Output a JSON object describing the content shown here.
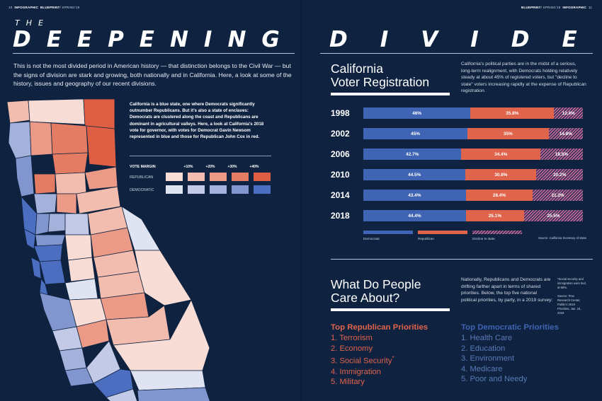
{
  "folio": {
    "left_page": "10",
    "left_section": "INFOGRAPHIC",
    "left_mag": "BLUEPRINT",
    "left_issue": "/ SPRING'19",
    "right_mag": "BLUEPRINT",
    "right_issue": "/ SPRING'19",
    "right_section": "INFOGRAPHIC",
    "right_page": "11"
  },
  "headline": {
    "the": "THE",
    "word_left": "DEEPENING",
    "word_right": "DIVIDE"
  },
  "intro": "This is not the most divided period in American history — that distinction belongs to the Civil War — but the signs of division are stark and growing, both nationally and in California. Here, a look at some of the history, issues and geography of our recent divisions.",
  "map_note": "California is a blue state, one where Democrats significantly outnumber Republicans. But it's also a state of enclaves: Democrats are clustered along the coast and Republicans are dominant in agricultural valleys. Here, a look at California's 2018 vote for governor, with votes for Democrat Gavin Newsom represented in blue and those for Republican John Cox in red.",
  "vote_margin": {
    "title": "VOTE MARGIN",
    "headers": [
      "+10%",
      "+20%",
      "+30%",
      "+40%"
    ],
    "republican_label": "REPUBLICAN",
    "democratic_label": "DEMOCRATIC",
    "republican_colors": [
      "#f8dcd6",
      "#f2bcae",
      "#eb9a87",
      "#e47b63",
      "#df5f44"
    ],
    "democratic_colors": [
      "#dfe3f2",
      "#c3cae8",
      "#a4b1db",
      "#8196cf",
      "#4c6ec0"
    ]
  },
  "registration": {
    "title_line1": "California",
    "title_line2": "Voter Registration",
    "description": "California's political parties are in the midst of a serious, long-term realignment, with Democrats holding relatively steady at about 45% of registered voters, but \"decline to state\" voters increasing rapidly at the expense of Republican registration.",
    "legend": {
      "democratic": "Democratic",
      "republican": "Republican",
      "decline": "Decline to state"
    },
    "source": "Source: California Secretary of State",
    "colors": {
      "democratic": "#3f64b4",
      "republican": "#e0634b",
      "decline": "#c86d93"
    }
  },
  "chart_data": {
    "type": "bar",
    "stacked": true,
    "categories": [
      "1998",
      "2002",
      "2006",
      "2010",
      "2014",
      "2018"
    ],
    "series": [
      {
        "name": "Democratic",
        "values": [
          46,
          45,
          42.7,
          44.5,
          43.4,
          44.4
        ],
        "labels": [
          "46%",
          "45%",
          "42.7%",
          "44.5%",
          "43.4%",
          "44.4%"
        ]
      },
      {
        "name": "Republican",
        "values": [
          35.8,
          35,
          34.4,
          30.8,
          28.4,
          25.1
        ],
        "labels": [
          "35.8%",
          "35%",
          "34.4%",
          "30.8%",
          "28.4%",
          "25.1%"
        ]
      },
      {
        "name": "Decline to state",
        "values": [
          12.4,
          14.8,
          18.5,
          20.2,
          21.2,
          25.5
        ],
        "labels": [
          "12.4%",
          "14.8%",
          "18.5%",
          "20.2%",
          "21.2%",
          "25.5%"
        ]
      }
    ]
  },
  "care": {
    "title_line1": "What Do People",
    "title_line2": "Care About?",
    "description": "Nationally, Republicans and Democrats are drifting farther apart in terms of shared priorities. Below, the top five national political priorities, by party, in a 2019 survey:",
    "side_note": "*Social security and immigration were tied, at 68%.",
    "side_source": "Source: Pew Research Center, Public's 2019 Priorities, Jan. 24, 2019",
    "republican_title": "Top Republican Priorities",
    "republican": [
      "1. Terrorism",
      "2. Economy",
      "3. Social Security",
      "4. Immigration",
      "5. Military"
    ],
    "democratic_title": "Top Democratic Priorities",
    "democratic": [
      "1. Health Care",
      "2. Education",
      "3. Environment",
      "4. Medicare",
      "5. Poor and Needy"
    ],
    "asterisk": "*"
  }
}
